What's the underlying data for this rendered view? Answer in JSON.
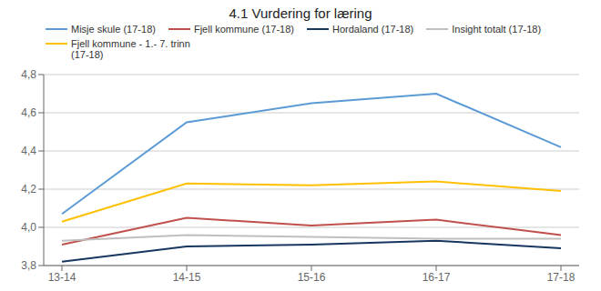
{
  "chart_data": {
    "type": "line",
    "title": "4.1 Vurdering for læring",
    "categories": [
      "13-14",
      "14-15",
      "15-16",
      "16-17",
      "17-18"
    ],
    "series": [
      {
        "name": "Misje skule (17-18)",
        "color": "#5B9BD5",
        "values": [
          4.07,
          4.55,
          4.65,
          4.7,
          4.42
        ]
      },
      {
        "name": "Fjell kommune (17-18)",
        "color": "#C0504D",
        "values": [
          3.91,
          4.05,
          4.01,
          4.04,
          3.96
        ]
      },
      {
        "name": "Hordaland (17-18)",
        "color": "#17375E",
        "values": [
          3.82,
          3.9,
          3.91,
          3.93,
          3.89
        ]
      },
      {
        "name": "Insight totalt (17-18)",
        "color": "#BFBFBF",
        "values": [
          3.93,
          3.96,
          3.95,
          3.94,
          3.94
        ]
      },
      {
        "name": "Fjell kommune - 1.- 7. trinn\n(17-18)",
        "color": "#FFC000",
        "values": [
          4.03,
          4.23,
          4.22,
          4.24,
          4.19
        ]
      }
    ],
    "ylim": [
      3.8,
      4.8
    ],
    "yticks": [
      {
        "value": 3.8,
        "label": "3,8"
      },
      {
        "value": 4.0,
        "label": "4,0"
      },
      {
        "value": 4.2,
        "label": "4,2"
      },
      {
        "value": 4.4,
        "label": "4,4"
      },
      {
        "value": 4.6,
        "label": "4,6"
      },
      {
        "value": 4.8,
        "label": "4,8"
      }
    ],
    "grid": true,
    "legend": "top"
  }
}
